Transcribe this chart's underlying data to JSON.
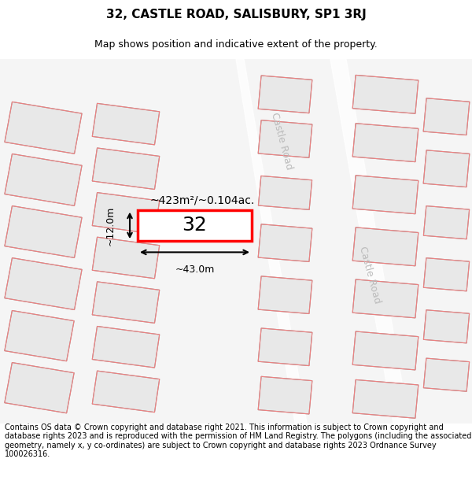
{
  "title": "32, CASTLE ROAD, SALISBURY, SP1 3RJ",
  "subtitle": "Map shows position and indicative extent of the property.",
  "footer": "Contains OS data © Crown copyright and database right 2021. This information is subject to Crown copyright and database rights 2023 and is reproduced with the permission of HM Land Registry. The polygons (including the associated geometry, namely x, y co-ordinates) are subject to Crown copyright and database rights 2023 Ordnance Survey 100026316.",
  "map_bg": "#f5f5f5",
  "road_color": "#cccccc",
  "road_line_color": "#f08080",
  "building_fill": "#e8e8e8",
  "building_edge": "#aaaaaa",
  "highlight_fill": "#ffffff",
  "highlight_edge": "#ff0000",
  "highlight_lw": 2.5,
  "area_label": "~423m²/~0.104ac.",
  "number_label": "32",
  "dim_width": "~43.0m",
  "dim_height": "~12.0m",
  "castle_road_label": "Castle Road",
  "title_fontsize": 11,
  "subtitle_fontsize": 9,
  "footer_fontsize": 7
}
